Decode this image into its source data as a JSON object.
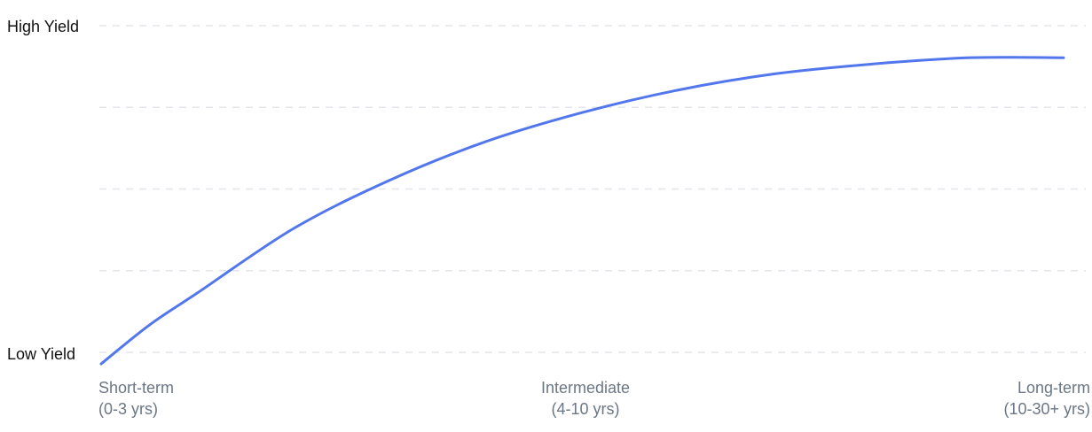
{
  "chart_data": {
    "type": "line",
    "title": "",
    "xlabel": "",
    "ylabel": "",
    "y_tick_labels": [
      "High Yield",
      "Low Yield"
    ],
    "x_tick_labels": [
      {
        "line1": "Short-term",
        "line2": "(0-3 yrs)"
      },
      {
        "line1": "Intermediate",
        "line2": "(4-10 yrs)"
      },
      {
        "line1": "Long-term",
        "line2": "(10-30+ yrs)"
      }
    ],
    "xlim": [
      0,
      1
    ],
    "ylim": [
      0,
      1
    ],
    "grid": true,
    "grid_lines": 5,
    "series": [
      {
        "color": "#5277ec",
        "points": [
          {
            "x": 0.0,
            "y": 0.0
          },
          {
            "x": 0.05,
            "y": 0.12
          },
          {
            "x": 0.1,
            "y": 0.22
          },
          {
            "x": 0.2,
            "y": 0.42
          },
          {
            "x": 0.3,
            "y": 0.57
          },
          {
            "x": 0.4,
            "y": 0.69
          },
          {
            "x": 0.5,
            "y": 0.78
          },
          {
            "x": 0.6,
            "y": 0.85
          },
          {
            "x": 0.7,
            "y": 0.9
          },
          {
            "x": 0.8,
            "y": 0.93
          },
          {
            "x": 0.9,
            "y": 0.95
          },
          {
            "x": 1.0,
            "y": 0.95
          }
        ]
      }
    ]
  }
}
